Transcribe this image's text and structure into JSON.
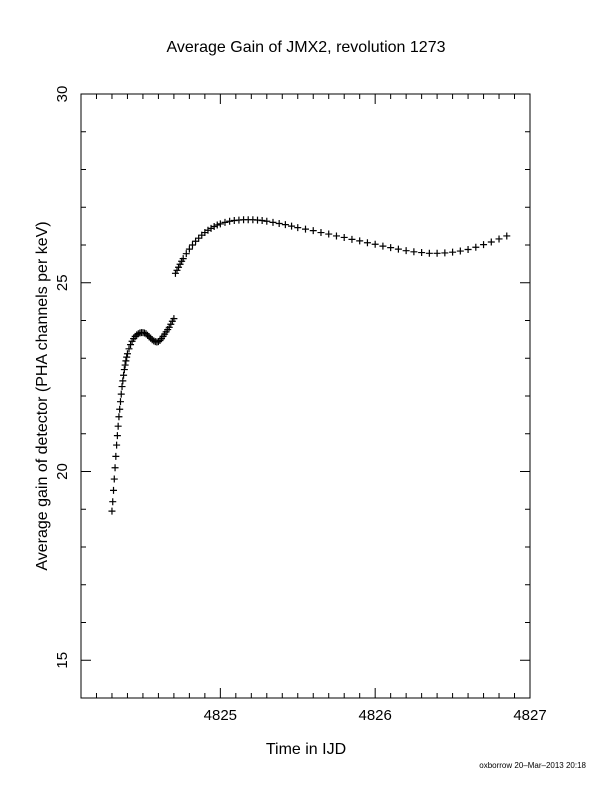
{
  "chart_data": {
    "type": "scatter",
    "title": "Average Gain of JMX2, revolution 1273",
    "xlabel": "Time in IJD",
    "ylabel": "Average gain of detector (PHA channels per keV)",
    "xlim": [
      4824.1,
      4827.0
    ],
    "ylim": [
      14.0,
      30.0
    ],
    "x_ticks": [
      {
        "value": 4825,
        "label": "4825"
      },
      {
        "value": 4826,
        "label": "4826"
      },
      {
        "value": 4827,
        "label": "4827"
      }
    ],
    "x_minor_step": 0.1,
    "y_ticks": [
      {
        "value": 15,
        "label": "15"
      },
      {
        "value": 20,
        "label": "20"
      },
      {
        "value": 25,
        "label": "25"
      },
      {
        "value": 30,
        "label": "30"
      }
    ],
    "y_minor_step": 1,
    "marker": "plus",
    "marker_color": "#000000",
    "grid": false,
    "legend": "none",
    "series": [
      {
        "points": [
          [
            4824.3,
            18.95
          ],
          [
            4824.305,
            19.2
          ],
          [
            4824.31,
            19.5
          ],
          [
            4824.315,
            19.8
          ],
          [
            4824.32,
            20.1
          ],
          [
            4824.325,
            20.4
          ],
          [
            4824.33,
            20.7
          ],
          [
            4824.335,
            20.95
          ],
          [
            4824.34,
            21.2
          ],
          [
            4824.345,
            21.45
          ],
          [
            4824.35,
            21.65
          ],
          [
            4824.355,
            21.85
          ],
          [
            4824.36,
            22.05
          ],
          [
            4824.365,
            22.25
          ],
          [
            4824.37,
            22.4
          ],
          [
            4824.375,
            22.55
          ],
          [
            4824.38,
            22.7
          ],
          [
            4824.385,
            22.82
          ],
          [
            4824.39,
            22.93
          ],
          [
            4824.395,
            23.03
          ],
          [
            4824.4,
            23.12
          ],
          [
            4824.41,
            23.25
          ],
          [
            4824.42,
            23.36
          ],
          [
            4824.43,
            23.45
          ],
          [
            4824.44,
            23.52
          ],
          [
            4824.45,
            23.58
          ],
          [
            4824.46,
            23.62
          ],
          [
            4824.47,
            23.65
          ],
          [
            4824.48,
            23.67
          ],
          [
            4824.49,
            23.68
          ],
          [
            4824.5,
            23.68
          ],
          [
            4824.51,
            23.67
          ],
          [
            4824.52,
            23.65
          ],
          [
            4824.53,
            23.61
          ],
          [
            4824.54,
            23.57
          ],
          [
            4824.55,
            23.53
          ],
          [
            4824.56,
            23.49
          ],
          [
            4824.57,
            23.46
          ],
          [
            4824.58,
            23.44
          ],
          [
            4824.59,
            23.43
          ],
          [
            4824.6,
            23.44
          ],
          [
            4824.61,
            23.47
          ],
          [
            4824.62,
            23.52
          ],
          [
            4824.63,
            23.58
          ],
          [
            4824.64,
            23.64
          ],
          [
            4824.65,
            23.7
          ],
          [
            4824.66,
            23.76
          ],
          [
            4824.67,
            23.82
          ],
          [
            4824.68,
            23.9
          ],
          [
            4824.69,
            23.98
          ],
          [
            4824.7,
            24.05
          ],
          [
            4824.71,
            25.25
          ],
          [
            4824.72,
            25.33
          ],
          [
            4824.73,
            25.41
          ],
          [
            4824.74,
            25.49
          ],
          [
            4824.75,
            25.57
          ],
          [
            4824.76,
            25.64
          ],
          [
            4824.78,
            25.77
          ],
          [
            4824.8,
            25.89
          ],
          [
            4824.82,
            26.0
          ],
          [
            4824.84,
            26.1
          ],
          [
            4824.86,
            26.18
          ],
          [
            4824.88,
            26.26
          ],
          [
            4824.9,
            26.33
          ],
          [
            4824.92,
            26.39
          ],
          [
            4824.94,
            26.44
          ],
          [
            4824.96,
            26.49
          ],
          [
            4824.98,
            26.53
          ],
          [
            4825.0,
            26.56
          ],
          [
            4825.03,
            26.6
          ],
          [
            4825.06,
            26.63
          ],
          [
            4825.09,
            26.65
          ],
          [
            4825.12,
            26.66
          ],
          [
            4825.15,
            26.67
          ],
          [
            4825.18,
            26.67
          ],
          [
            4825.21,
            26.67
          ],
          [
            4825.24,
            26.66
          ],
          [
            4825.27,
            26.65
          ],
          [
            4825.3,
            26.63
          ],
          [
            4825.34,
            26.6
          ],
          [
            4825.38,
            26.57
          ],
          [
            4825.42,
            26.54
          ],
          [
            4825.46,
            26.5
          ],
          [
            4825.5,
            26.46
          ],
          [
            4825.55,
            26.42
          ],
          [
            4825.6,
            26.38
          ],
          [
            4825.65,
            26.33
          ],
          [
            4825.7,
            26.29
          ],
          [
            4825.75,
            26.24
          ],
          [
            4825.8,
            26.2
          ],
          [
            4825.85,
            26.15
          ],
          [
            4825.9,
            26.11
          ],
          [
            4825.95,
            26.06
          ],
          [
            4826.0,
            26.02
          ],
          [
            4826.05,
            25.97
          ],
          [
            4826.1,
            25.93
          ],
          [
            4826.15,
            25.89
          ],
          [
            4826.2,
            25.85
          ],
          [
            4826.25,
            25.82
          ],
          [
            4826.3,
            25.8
          ],
          [
            4826.35,
            25.78
          ],
          [
            4826.4,
            25.78
          ],
          [
            4826.45,
            25.79
          ],
          [
            4826.5,
            25.81
          ],
          [
            4826.55,
            25.84
          ],
          [
            4826.6,
            25.88
          ],
          [
            4826.65,
            25.94
          ],
          [
            4826.7,
            26.01
          ],
          [
            4826.75,
            26.08
          ],
          [
            4826.8,
            26.16
          ],
          [
            4826.85,
            26.24
          ]
        ]
      }
    ]
  },
  "footer": "oxborrow 20–Mar–2013 20:18"
}
